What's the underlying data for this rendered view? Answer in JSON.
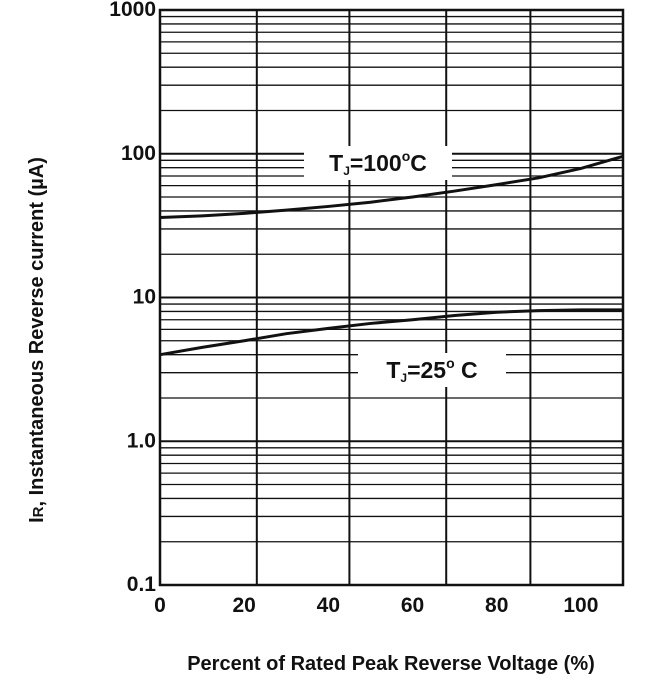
{
  "chart_data": {
    "type": "line",
    "xlabel": "Percent of Rated Peak Reverse Voltage (%)",
    "ylabel_main": "I",
    "ylabel_sub": "R",
    "ylabel_rest": ", Instantaneous Reverse current (µA)",
    "y_scale": "log",
    "ylim": [
      0.1,
      1000
    ],
    "xlim": [
      0,
      110
    ],
    "grid": true,
    "x_ticks": [
      "0",
      "20",
      "40",
      "60",
      "80",
      "100"
    ],
    "x_tick_values": [
      0,
      20,
      40,
      60,
      80,
      100
    ],
    "y_ticks": [
      "0.1",
      "1.0",
      "10",
      "100",
      "1000"
    ],
    "y_tick_values": [
      0.1,
      1,
      10,
      100,
      1000
    ],
    "vertical_grid_values": [
      23,
      45,
      68,
      88
    ],
    "series": [
      {
        "name": "TJ=100°C",
        "label_parts": [
          "T",
          "J",
          "=100",
          "o",
          "C"
        ],
        "x": [
          0,
          10,
          20,
          30,
          40,
          50,
          60,
          70,
          80,
          90,
          100,
          110
        ],
        "values": [
          36,
          37,
          38.5,
          40.5,
          43,
          46,
          50,
          55,
          61,
          68,
          79,
          96
        ]
      },
      {
        "name": "TJ=25°C",
        "label_parts": [
          "T",
          "J",
          "=25",
          "o",
          " C"
        ],
        "x": [
          0,
          10,
          20,
          30,
          40,
          50,
          60,
          70,
          80,
          90,
          100,
          110
        ],
        "values": [
          4.0,
          4.5,
          5.0,
          5.6,
          6.1,
          6.6,
          7.0,
          7.5,
          7.9,
          8.1,
          8.2,
          8.2
        ]
      }
    ]
  }
}
